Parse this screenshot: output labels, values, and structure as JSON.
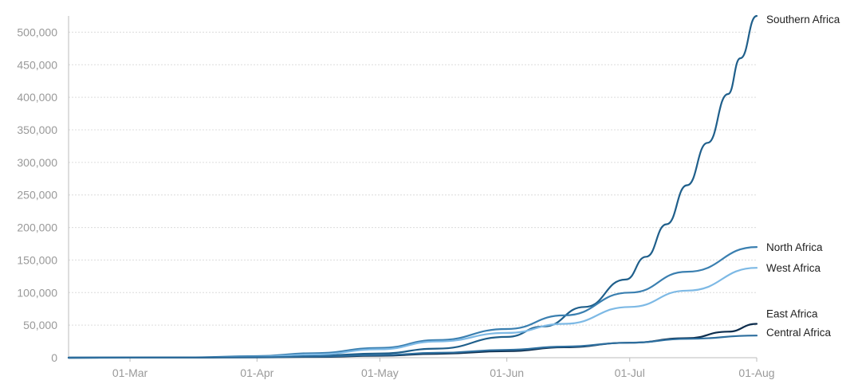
{
  "chart_data": {
    "type": "line",
    "title": "",
    "xlabel": "",
    "ylabel": "",
    "x_ticks": [
      "01-Mar",
      "01-Apr",
      "01-May",
      "01-Jun",
      "01-Jul",
      "01-Aug"
    ],
    "y_ticks": [
      "0",
      "50,000",
      "100,000",
      "150,000",
      "200,000",
      "250,000",
      "300,000",
      "350,000",
      "400,000",
      "450,000",
      "500,000"
    ],
    "xlim": [
      "2020-02-15",
      "2020-08-01"
    ],
    "ylim": [
      0,
      525000
    ],
    "grid": true,
    "legend": "direct labels at line ends (right)",
    "series": [
      {
        "name": "Southern Africa",
        "color": "#1f5f8b",
        "points": [
          [
            "2020-02-15",
            0
          ],
          [
            "2020-03-15",
            100
          ],
          [
            "2020-04-01",
            1500
          ],
          [
            "2020-04-15",
            3000
          ],
          [
            "2020-05-01",
            6500
          ],
          [
            "2020-05-15",
            14000
          ],
          [
            "2020-06-01",
            32000
          ],
          [
            "2020-06-10",
            48000
          ],
          [
            "2020-06-20",
            78000
          ],
          [
            "2020-06-30",
            120000
          ],
          [
            "2020-07-05",
            155000
          ],
          [
            "2020-07-10",
            205000
          ],
          [
            "2020-07-15",
            265000
          ],
          [
            "2020-07-20",
            330000
          ],
          [
            "2020-07-25",
            405000
          ],
          [
            "2020-07-28",
            460000
          ],
          [
            "2020-08-01",
            525000
          ]
        ]
      },
      {
        "name": "North Africa",
        "color": "#3a7fb0",
        "points": [
          [
            "2020-02-15",
            0
          ],
          [
            "2020-03-15",
            500
          ],
          [
            "2020-04-01",
            2500
          ],
          [
            "2020-04-15",
            7000
          ],
          [
            "2020-05-01",
            15000
          ],
          [
            "2020-05-15",
            27000
          ],
          [
            "2020-06-01",
            44000
          ],
          [
            "2020-06-15",
            65000
          ],
          [
            "2020-07-01",
            100000
          ],
          [
            "2020-07-15",
            132000
          ],
          [
            "2020-08-01",
            170000
          ]
        ]
      },
      {
        "name": "West Africa",
        "color": "#7db9e5",
        "points": [
          [
            "2020-02-15",
            0
          ],
          [
            "2020-03-15",
            200
          ],
          [
            "2020-04-01",
            1500
          ],
          [
            "2020-04-15",
            5000
          ],
          [
            "2020-05-01",
            13000
          ],
          [
            "2020-05-15",
            25000
          ],
          [
            "2020-06-01",
            38000
          ],
          [
            "2020-06-15",
            52000
          ],
          [
            "2020-07-01",
            78000
          ],
          [
            "2020-07-15",
            103000
          ],
          [
            "2020-08-01",
            138000
          ]
        ]
      },
      {
        "name": "East Africa",
        "color": "#0d2d4d",
        "points": [
          [
            "2020-02-15",
            0
          ],
          [
            "2020-04-01",
            500
          ],
          [
            "2020-04-15",
            1200
          ],
          [
            "2020-05-01",
            3000
          ],
          [
            "2020-05-15",
            6000
          ],
          [
            "2020-06-01",
            10000
          ],
          [
            "2020-06-15",
            16000
          ],
          [
            "2020-07-01",
            23000
          ],
          [
            "2020-07-15",
            30000
          ],
          [
            "2020-07-25",
            40000
          ],
          [
            "2020-08-01",
            52000
          ]
        ]
      },
      {
        "name": "Central Africa",
        "color": "#2d6e9e",
        "points": [
          [
            "2020-02-15",
            0
          ],
          [
            "2020-04-01",
            700
          ],
          [
            "2020-04-15",
            1800
          ],
          [
            "2020-05-01",
            4000
          ],
          [
            "2020-05-15",
            7500
          ],
          [
            "2020-06-01",
            12000
          ],
          [
            "2020-06-15",
            17000
          ],
          [
            "2020-07-01",
            23000
          ],
          [
            "2020-07-15",
            29000
          ],
          [
            "2020-08-01",
            34000
          ]
        ]
      }
    ]
  }
}
